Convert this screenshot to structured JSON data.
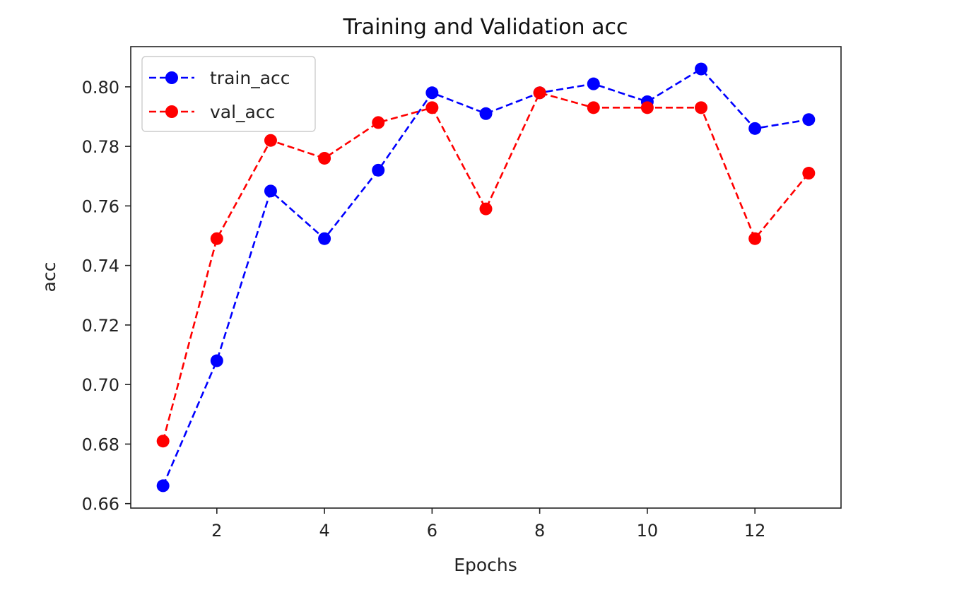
{
  "chart_data": {
    "type": "line",
    "title": "Training and Validation acc",
    "xlabel": "Epochs",
    "ylabel": "acc",
    "x": [
      1,
      2,
      3,
      4,
      5,
      6,
      7,
      8,
      9,
      10,
      11,
      12,
      13
    ],
    "xlim": [
      0.4,
      13.6
    ],
    "ylim": [
      0.6585,
      0.8135
    ],
    "xticks": [
      2,
      4,
      6,
      8,
      10,
      12
    ],
    "xtick_labels": [
      "2",
      "4",
      "6",
      "8",
      "10",
      "12"
    ],
    "yticks": [
      0.66,
      0.68,
      0.7,
      0.72,
      0.74,
      0.76,
      0.78,
      0.8
    ],
    "ytick_labels": [
      "0.66",
      "0.68",
      "0.70",
      "0.72",
      "0.74",
      "0.76",
      "0.78",
      "0.80"
    ],
    "grid": false,
    "legend_position": "top-left",
    "series": [
      {
        "name": "train_acc",
        "color": "#0000ff",
        "line_style": "dashed",
        "marker": "circle",
        "values": [
          0.666,
          0.708,
          0.765,
          0.749,
          0.772,
          0.798,
          0.791,
          0.798,
          0.801,
          0.795,
          0.806,
          0.786,
          0.789
        ]
      },
      {
        "name": "val_acc",
        "color": "#ff0000",
        "line_style": "dashed",
        "marker": "circle",
        "values": [
          0.681,
          0.749,
          0.782,
          0.776,
          0.788,
          0.793,
          0.759,
          0.798,
          0.793,
          0.793,
          0.793,
          0.749,
          0.771
        ]
      }
    ]
  }
}
